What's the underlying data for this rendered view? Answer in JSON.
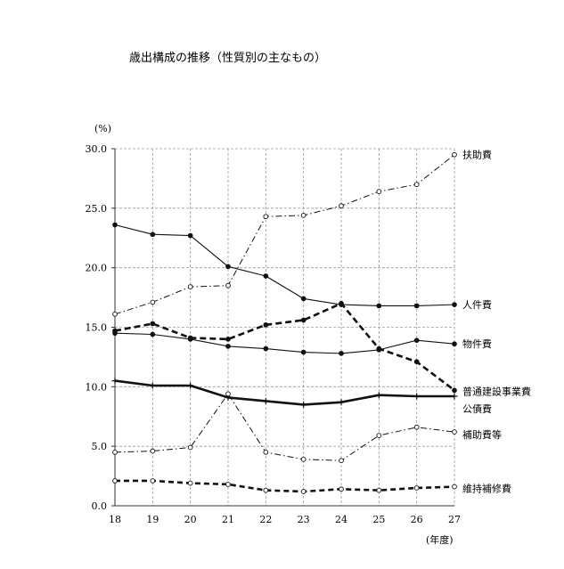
{
  "chart_data": {
    "type": "line",
    "title": "歳出構成の推移（性質別の主なもの）",
    "ylabel": "(%)",
    "xlabel": "(年度)",
    "ylim": [
      0,
      30
    ],
    "yticks": [
      "0.0",
      "5.0",
      "10.0",
      "15.0",
      "20.0",
      "25.0",
      "30.0"
    ],
    "categories": [
      "18",
      "19",
      "20",
      "21",
      "22",
      "23",
      "24",
      "25",
      "26",
      "27"
    ],
    "grid": "dashed",
    "series": [
      {
        "name": "扶助費",
        "style": "dashdot-hollow",
        "values": [
          16.1,
          17.1,
          18.4,
          18.5,
          24.3,
          24.4,
          25.2,
          26.4,
          27.0,
          29.5
        ]
      },
      {
        "name": "人件費",
        "style": "solid-filled",
        "values": [
          23.6,
          22.8,
          22.7,
          20.1,
          19.3,
          17.4,
          16.9,
          16.8,
          16.8,
          16.9
        ]
      },
      {
        "name": "物件費",
        "style": "solid-filled",
        "values": [
          14.5,
          14.4,
          14.0,
          13.4,
          13.2,
          12.9,
          12.8,
          13.1,
          13.9,
          13.6
        ]
      },
      {
        "name": "普通建設事業費",
        "style": "dashed-bold",
        "values": [
          14.7,
          15.3,
          14.1,
          14.0,
          15.2,
          15.6,
          17.0,
          13.2,
          12.1,
          9.7
        ]
      },
      {
        "name": "公債費",
        "style": "solid-bold-plus",
        "values": [
          10.5,
          10.1,
          10.1,
          9.1,
          8.8,
          8.5,
          8.7,
          9.3,
          9.2,
          9.2
        ]
      },
      {
        "name": "補助費等",
        "style": "dashdot-hollow",
        "values": [
          4.5,
          4.6,
          4.9,
          9.4,
          4.5,
          3.9,
          3.8,
          5.9,
          6.6,
          6.2
        ]
      },
      {
        "name": "維持補修費",
        "style": "dashed-bold-hollow",
        "values": [
          2.1,
          2.1,
          1.9,
          1.8,
          1.3,
          1.2,
          1.4,
          1.3,
          1.5,
          1.6
        ]
      }
    ]
  }
}
